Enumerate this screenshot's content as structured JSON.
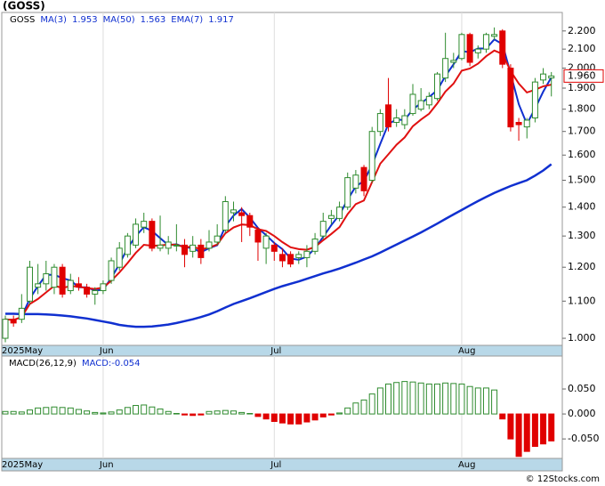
{
  "chart_data": {
    "type": "candlestick",
    "title": "(GOSS)",
    "ticker": "GOSS",
    "log_scale": true,
    "ylim": [
      0.982,
      2.307
    ],
    "yticks": [
      {
        "value": 1.0,
        "label": "1.000"
      },
      {
        "value": 1.1,
        "label": "1.100"
      },
      {
        "value": 1.2,
        "label": "1.200"
      },
      {
        "value": 1.3,
        "label": "1.300"
      },
      {
        "value": 1.4,
        "label": "1.400"
      },
      {
        "value": 1.5,
        "label": "1.500"
      },
      {
        "value": 1.6,
        "label": "1.600"
      },
      {
        "value": 1.7,
        "label": "1.700"
      },
      {
        "value": 1.8,
        "label": "1.800"
      },
      {
        "value": 1.9,
        "label": "1.900"
      },
      {
        "value": 2.0,
        "label": "2.000"
      },
      {
        "value": 2.1,
        "label": "2.100"
      },
      {
        "value": 2.2,
        "label": "2.200"
      }
    ],
    "up_color": "#2e8b2e",
    "down_color": "#e00000",
    "open": [
      1.0,
      1.05,
      1.05,
      1.1,
      1.14,
      1.15,
      1.14,
      1.2,
      1.13,
      1.15,
      1.14,
      1.12,
      1.13,
      1.16,
      1.2,
      1.24,
      1.27,
      1.33,
      1.35,
      1.26,
      1.26,
      1.27,
      1.27,
      1.25,
      1.27,
      1.26,
      1.28,
      1.32,
      1.38,
      1.38,
      1.37,
      1.32,
      1.26,
      1.27,
      1.24,
      1.24,
      1.23,
      1.23,
      1.25,
      1.3,
      1.36,
      1.36,
      1.4,
      1.47,
      1.55,
      1.5,
      1.7,
      1.82,
      1.74,
      1.73,
      1.78,
      1.8,
      1.82,
      1.85,
      1.95,
      2.03,
      2.05,
      2.18,
      2.08,
      2.1,
      2.17,
      2.2,
      2.0,
      1.74,
      1.72,
      1.76,
      1.94,
      1.95
    ],
    "high": [
      1.06,
      1.06,
      1.12,
      1.22,
      1.21,
      1.22,
      1.21,
      1.21,
      1.18,
      1.17,
      1.15,
      1.14,
      1.16,
      1.23,
      1.28,
      1.31,
      1.36,
      1.38,
      1.36,
      1.37,
      1.3,
      1.34,
      1.29,
      1.3,
      1.29,
      1.32,
      1.34,
      1.44,
      1.42,
      1.4,
      1.38,
      1.33,
      1.31,
      1.28,
      1.26,
      1.25,
      1.25,
      1.27,
      1.31,
      1.38,
      1.39,
      1.42,
      1.53,
      1.54,
      1.56,
      1.72,
      1.8,
      1.95,
      1.8,
      1.8,
      1.92,
      1.9,
      1.88,
      1.98,
      2.19,
      2.08,
      2.19,
      2.19,
      2.12,
      2.19,
      2.22,
      2.21,
      2.02,
      1.76,
      1.76,
      1.95,
      2.0,
      1.98
    ],
    "low": [
      0.99,
      1.03,
      1.04,
      1.09,
      1.12,
      1.13,
      1.12,
      1.11,
      1.12,
      1.13,
      1.11,
      1.09,
      1.12,
      1.15,
      1.19,
      1.23,
      1.26,
      1.31,
      1.25,
      1.25,
      1.24,
      1.25,
      1.2,
      1.23,
      1.21,
      1.25,
      1.27,
      1.31,
      1.35,
      1.28,
      1.3,
      1.22,
      1.21,
      1.22,
      1.2,
      1.2,
      1.21,
      1.2,
      1.24,
      1.29,
      1.34,
      1.35,
      1.39,
      1.45,
      1.44,
      1.49,
      1.68,
      1.7,
      1.72,
      1.71,
      1.77,
      1.79,
      1.8,
      1.84,
      1.93,
      2.0,
      2.04,
      2.01,
      2.05,
      2.08,
      2.15,
      2.0,
      1.7,
      1.66,
      1.67,
      1.74,
      1.92,
      1.86
    ],
    "close": [
      1.05,
      1.04,
      1.08,
      1.2,
      1.15,
      1.18,
      1.2,
      1.12,
      1.16,
      1.14,
      1.12,
      1.13,
      1.15,
      1.22,
      1.26,
      1.3,
      1.34,
      1.35,
      1.26,
      1.27,
      1.28,
      1.27,
      1.24,
      1.27,
      1.23,
      1.28,
      1.3,
      1.42,
      1.39,
      1.37,
      1.33,
      1.28,
      1.3,
      1.25,
      1.22,
      1.21,
      1.24,
      1.25,
      1.29,
      1.35,
      1.37,
      1.4,
      1.51,
      1.52,
      1.46,
      1.7,
      1.78,
      1.72,
      1.76,
      1.77,
      1.87,
      1.84,
      1.86,
      1.97,
      2.05,
      2.04,
      2.18,
      2.03,
      2.1,
      2.18,
      2.18,
      2.02,
      1.72,
      1.73,
      1.75,
      1.93,
      1.97,
      1.96
    ],
    "series": [
      {
        "name": "MA(3)",
        "color": "#1030d0",
        "width": 2,
        "values": [
          null,
          null,
          1.057,
          1.107,
          1.143,
          1.177,
          1.177,
          1.167,
          1.16,
          1.14,
          1.14,
          1.13,
          1.133,
          1.167,
          1.21,
          1.26,
          1.3,
          1.33,
          1.317,
          1.293,
          1.27,
          1.273,
          1.263,
          1.26,
          1.247,
          1.26,
          1.27,
          1.333,
          1.37,
          1.393,
          1.363,
          1.327,
          1.303,
          1.277,
          1.257,
          1.227,
          1.223,
          1.233,
          1.26,
          1.297,
          1.337,
          1.373,
          1.427,
          1.477,
          1.497,
          1.56,
          1.647,
          1.733,
          1.753,
          1.75,
          1.8,
          1.827,
          1.857,
          1.89,
          1.96,
          2.02,
          2.09,
          2.083,
          2.103,
          2.103,
          2.153,
          2.127,
          1.973,
          1.823,
          1.733,
          1.803,
          1.883,
          1.953
        ]
      },
      {
        "name": "MA(50)",
        "color": "#1030d0",
        "width": 2.5,
        "values": [
          1.065,
          1.065,
          1.064,
          1.064,
          1.064,
          1.063,
          1.062,
          1.06,
          1.058,
          1.055,
          1.052,
          1.048,
          1.044,
          1.04,
          1.035,
          1.032,
          1.03,
          1.03,
          1.031,
          1.033,
          1.036,
          1.04,
          1.045,
          1.05,
          1.056,
          1.063,
          1.072,
          1.082,
          1.092,
          1.1,
          1.108,
          1.117,
          1.126,
          1.135,
          1.143,
          1.15,
          1.157,
          1.165,
          1.173,
          1.181,
          1.188,
          1.196,
          1.205,
          1.214,
          1.224,
          1.234,
          1.246,
          1.259,
          1.272,
          1.285,
          1.298,
          1.312,
          1.327,
          1.342,
          1.358,
          1.374,
          1.39,
          1.406,
          1.422,
          1.437,
          1.452,
          1.465,
          1.478,
          1.489,
          1.5,
          1.518,
          1.538,
          1.563
        ]
      },
      {
        "name": "EMA(7)",
        "color": "#e01010",
        "width": 2,
        "values": [
          1.05,
          1.048,
          1.056,
          1.092,
          1.106,
          1.125,
          1.144,
          1.138,
          1.143,
          1.142,
          1.137,
          1.135,
          1.139,
          1.159,
          1.184,
          1.213,
          1.245,
          1.271,
          1.268,
          1.269,
          1.272,
          1.271,
          1.263,
          1.265,
          1.256,
          1.262,
          1.272,
          1.309,
          1.329,
          1.339,
          1.337,
          1.323,
          1.317,
          1.3,
          1.28,
          1.263,
          1.257,
          1.255,
          1.264,
          1.286,
          1.307,
          1.33,
          1.375,
          1.411,
          1.424,
          1.493,
          1.565,
          1.603,
          1.643,
          1.674,
          1.723,
          1.753,
          1.779,
          1.827,
          1.883,
          1.922,
          1.987,
          1.998,
          2.023,
          2.062,
          2.092,
          2.074,
          1.985,
          1.922,
          1.879,
          1.892,
          1.909,
          1.917
        ]
      }
    ],
    "last_price": {
      "value": 1.96,
      "label": "1.960"
    },
    "x_labels": [
      {
        "label": "2025May",
        "index": 0
      },
      {
        "label": "Jun",
        "index": 12
      },
      {
        "label": "Jul",
        "index": 33
      },
      {
        "label": "Aug",
        "index": 56
      }
    ],
    "macd": {
      "title": "MACD(26,12,9)",
      "label": "MACD:-0.054",
      "ylim": [
        -0.089,
        0.116
      ],
      "yticks": [
        {
          "value": 0.05,
          "label": "0.050"
        },
        {
          "value": 0,
          "label": "0.000"
        },
        {
          "value": -0.05,
          "label": "-0.050"
        }
      ],
      "values": [
        0.005,
        0.005,
        0.004,
        0.008,
        0.012,
        0.013,
        0.014,
        0.013,
        0.012,
        0.009,
        0.006,
        0.003,
        0.002,
        0.004,
        0.008,
        0.013,
        0.017,
        0.018,
        0.014,
        0.01,
        0.005,
        0.001,
        -0.002,
        -0.003,
        -0.002,
        0.005,
        0.006,
        0.007,
        0.006,
        0.003,
        0.001,
        -0.005,
        -0.01,
        -0.015,
        -0.018,
        -0.02,
        -0.02,
        -0.016,
        -0.012,
        -0.006,
        -0.002,
        0.002,
        0.012,
        0.022,
        0.028,
        0.04,
        0.052,
        0.06,
        0.063,
        0.065,
        0.064,
        0.062,
        0.06,
        0.06,
        0.062,
        0.061,
        0.06,
        0.055,
        0.052,
        0.052,
        0.048,
        -0.01,
        -0.05,
        -0.085,
        -0.075,
        -0.065,
        -0.06,
        -0.054
      ]
    },
    "source": "© 12Stocks.com"
  }
}
